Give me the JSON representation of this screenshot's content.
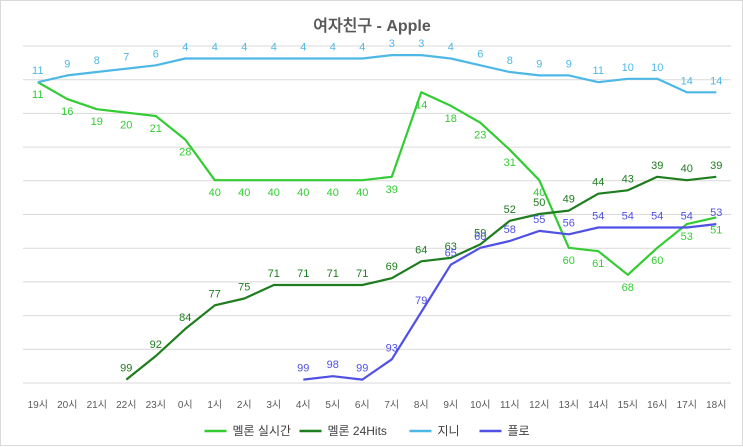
{
  "chart_data": {
    "type": "line",
    "title": "여자친구 - Apple",
    "xlabel": "",
    "ylabel": "",
    "y_reversed": true,
    "ylim": [
      1,
      100
    ],
    "grid": true,
    "legend_position": "bottom",
    "categories": [
      "19시",
      "20시",
      "21시",
      "22시",
      "23시",
      "0시",
      "1시",
      "2시",
      "3시",
      "4시",
      "5시",
      "6시",
      "7시",
      "8시",
      "9시",
      "10시",
      "11시",
      "12시",
      "13시",
      "14시",
      "15시",
      "16시",
      "17시",
      "18시"
    ],
    "series": [
      {
        "name": "멜론 실시간",
        "color": "#33cc33",
        "values": [
          11,
          16,
          19,
          20,
          21,
          28,
          40,
          40,
          40,
          40,
          40,
          40,
          39,
          14,
          18,
          23,
          31,
          40,
          60,
          61,
          68,
          60,
          53,
          51
        ]
      },
      {
        "name": "멜론 24Hits",
        "color": "#1e7d1e",
        "values": [
          null,
          null,
          null,
          99,
          92,
          84,
          77,
          75,
          71,
          71,
          71,
          71,
          69,
          64,
          63,
          59,
          52,
          50,
          49,
          44,
          43,
          39,
          40,
          39
        ]
      },
      {
        "name": "지니",
        "color": "#4db8e6",
        "values": [
          11,
          9,
          8,
          7,
          6,
          4,
          4,
          4,
          4,
          4,
          4,
          4,
          3,
          3,
          4,
          6,
          8,
          9,
          9,
          11,
          10,
          10,
          14,
          14
        ]
      },
      {
        "name": "플로",
        "color": "#5050e6",
        "values": [
          null,
          null,
          null,
          null,
          null,
          null,
          null,
          null,
          null,
          99,
          98,
          99,
          93,
          79,
          65,
          60,
          58,
          55,
          56,
          54,
          54,
          54,
          54,
          53
        ]
      }
    ]
  }
}
